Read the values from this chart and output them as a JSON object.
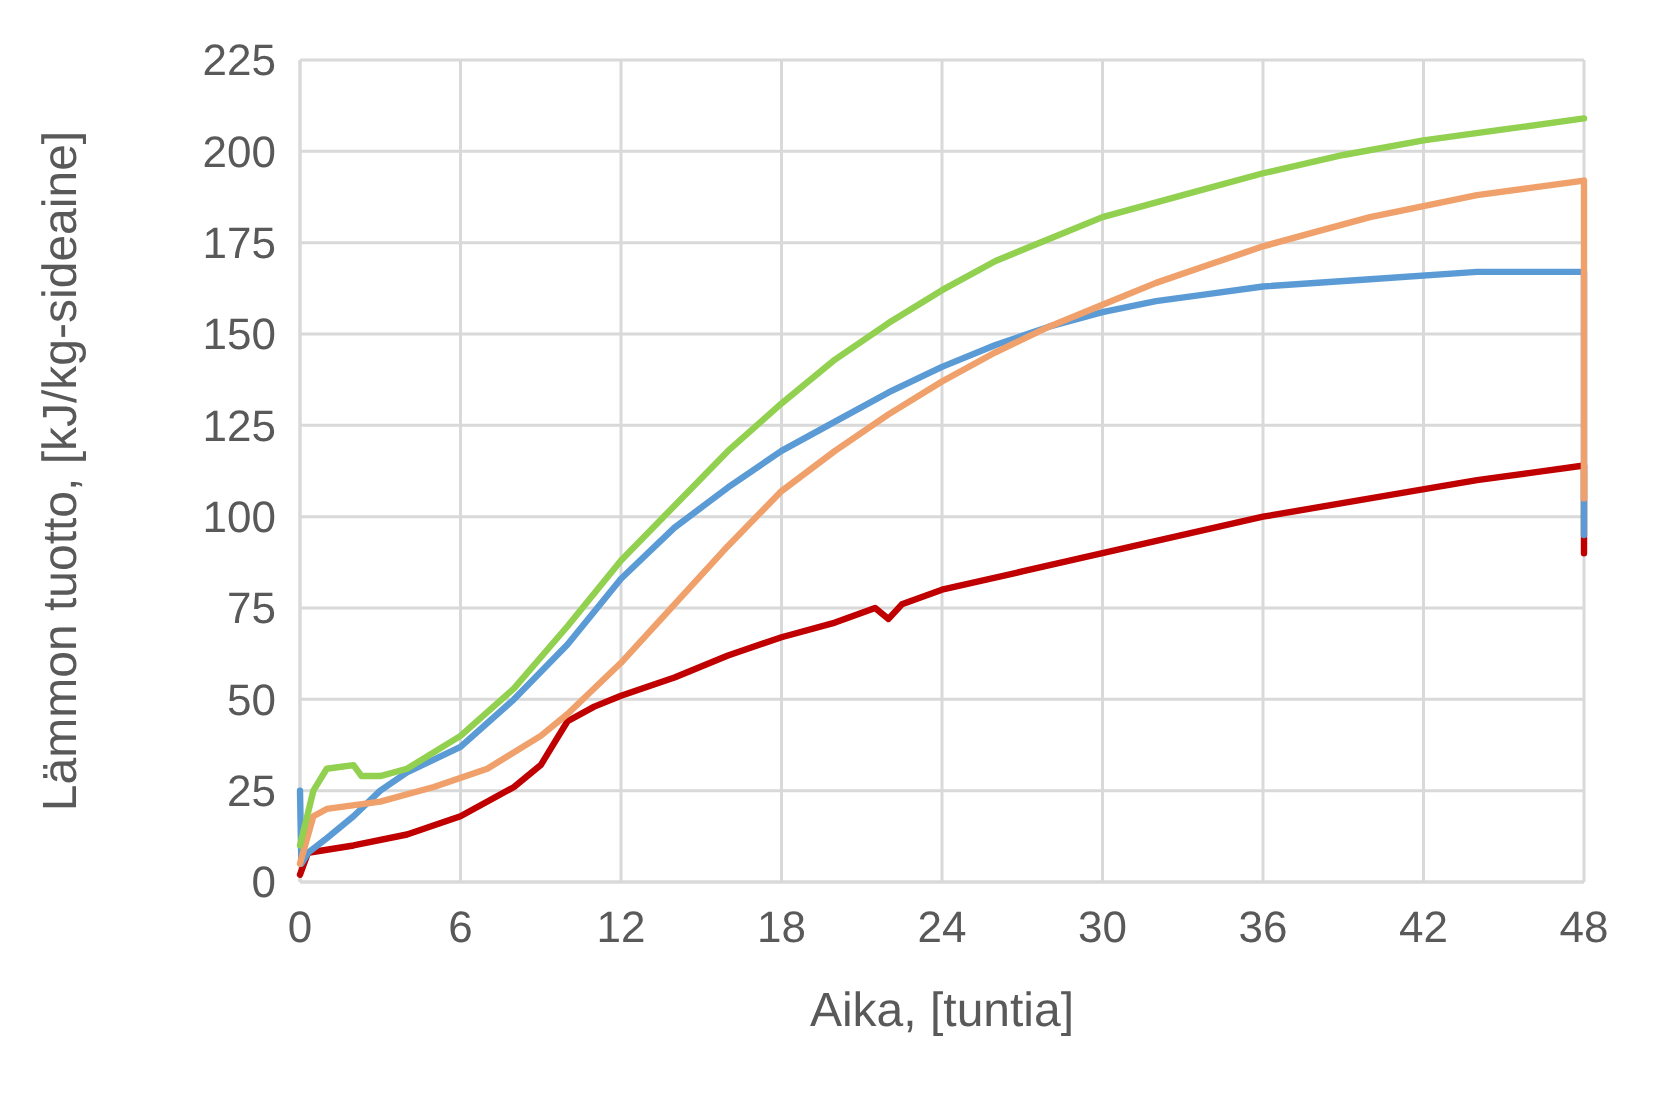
{
  "chart_data": {
    "type": "line",
    "xlabel": "Aika, [tuntia]",
    "ylabel": "Lämmon tuotto, [kJ/kg-sideaine]",
    "xlim": [
      0,
      48
    ],
    "ylim": [
      0,
      225
    ],
    "xticks": [
      0,
      6,
      12,
      18,
      24,
      30,
      36,
      42,
      48
    ],
    "yticks": [
      0,
      25,
      50,
      75,
      100,
      125,
      150,
      175,
      200,
      225
    ],
    "grid": true,
    "line_style": "solid",
    "marker": "none",
    "series": [
      {
        "color": "#c00000",
        "x": [
          0,
          0.3,
          2,
          4,
          6,
          8,
          9,
          9.5,
          10,
          11,
          12,
          14,
          16,
          18,
          20,
          21.5,
          22,
          22.5,
          24,
          27,
          30,
          33,
          36,
          40,
          44,
          46,
          48,
          48
        ],
        "values": [
          2,
          8,
          10,
          13,
          18,
          26,
          32,
          38,
          44,
          48,
          51,
          56,
          62,
          67,
          71,
          75,
          72,
          76,
          80,
          85,
          90,
          95,
          100,
          105,
          110,
          112,
          114,
          90
        ]
      },
      {
        "color": "#5b9bd5",
        "x": [
          0,
          0.05,
          0.3,
          1,
          2,
          3,
          4,
          6,
          8,
          10,
          12,
          14,
          16,
          18,
          20,
          22,
          24,
          26,
          28,
          30,
          32,
          34,
          36,
          40,
          44,
          48,
          48
        ],
        "values": [
          25,
          5,
          8,
          12,
          18,
          25,
          30,
          37,
          50,
          65,
          83,
          97,
          108,
          118,
          126,
          134,
          141,
          147,
          152,
          156,
          159,
          161,
          163,
          165,
          167,
          167,
          95
        ]
      },
      {
        "color": "#f0a06a",
        "x": [
          0,
          0.5,
          1,
          3,
          5,
          7,
          9,
          10,
          12,
          14,
          16,
          18,
          20,
          22,
          24,
          26,
          28,
          30,
          32,
          34,
          36,
          38,
          40,
          42,
          44,
          46,
          48,
          48
        ],
        "values": [
          5,
          18,
          20,
          22,
          26,
          31,
          40,
          46,
          60,
          76,
          92,
          107,
          118,
          128,
          137,
          145,
          152,
          158,
          164,
          169,
          174,
          178,
          182,
          185,
          188,
          190,
          192,
          105
        ]
      },
      {
        "color": "#92d050",
        "x": [
          0,
          0.5,
          1,
          2,
          2.3,
          3,
          4,
          6,
          8,
          10,
          12,
          14,
          16,
          18,
          20,
          22,
          24,
          26,
          28,
          30,
          33,
          36,
          39,
          42,
          45,
          48
        ],
        "values": [
          10,
          25,
          31,
          32,
          29,
          29,
          31,
          40,
          53,
          70,
          88,
          103,
          118,
          131,
          143,
          153,
          162,
          170,
          176,
          182,
          188,
          194,
          199,
          203,
          206,
          209
        ]
      }
    ]
  }
}
